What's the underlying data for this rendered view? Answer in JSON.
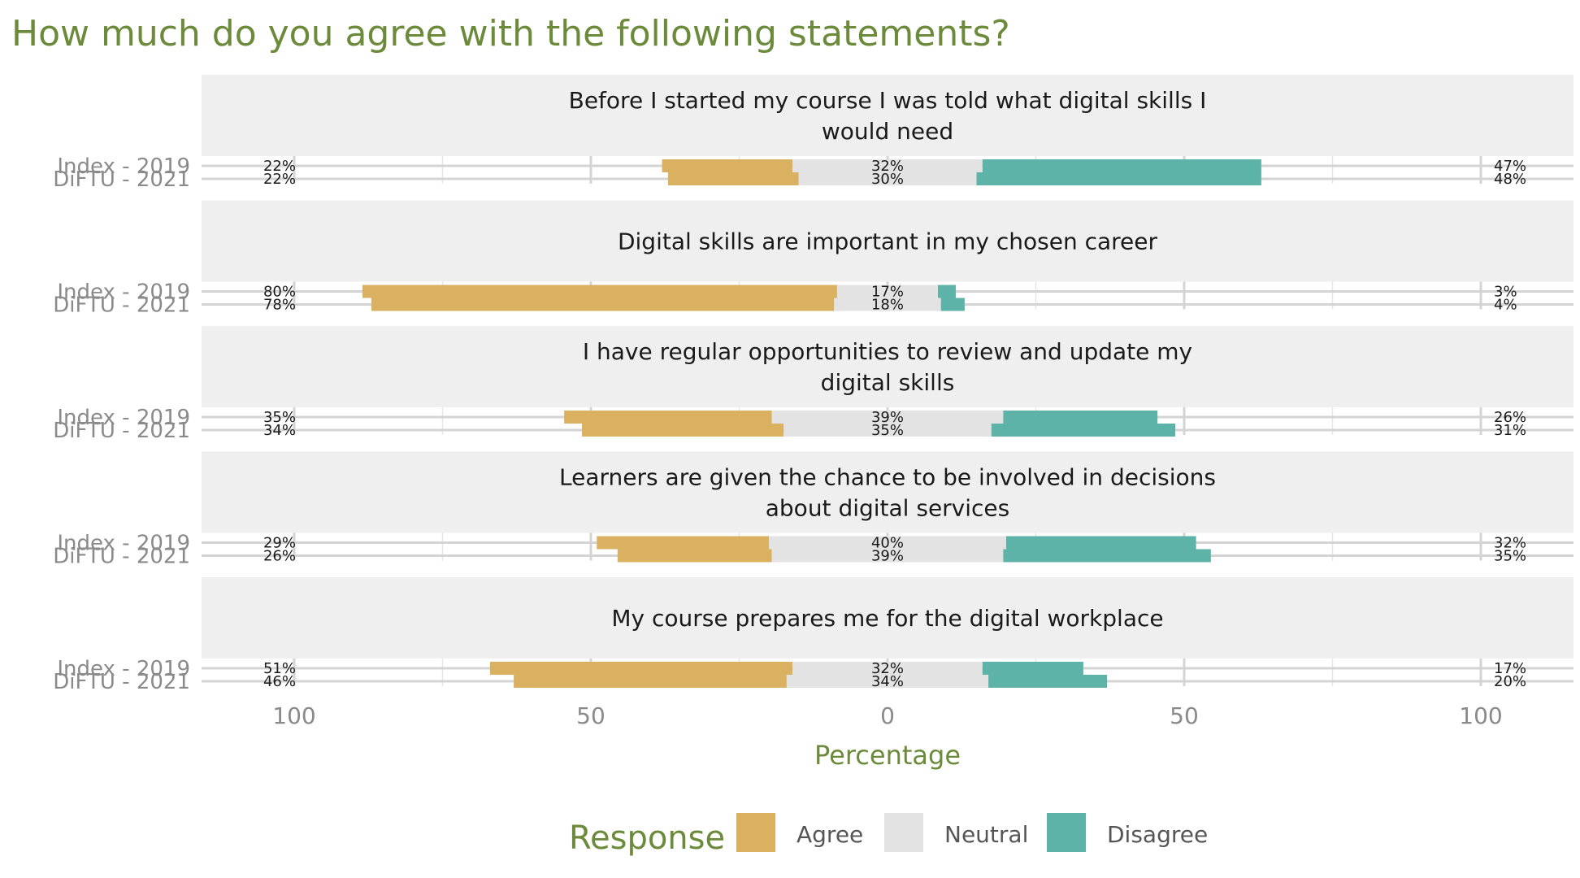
{
  "chart_data": {
    "type": "bar",
    "subtype": "diverging-stacked-horizontal",
    "title": "How much do you agree with the following statements?",
    "xlabel": "Percentage",
    "x_ticks": [
      "100",
      "50",
      "0",
      "50",
      "100"
    ],
    "xlim": [
      -100,
      100
    ],
    "grid": true,
    "legend": {
      "title": "Response",
      "position": "bottom",
      "entries": [
        {
          "name": "Agree",
          "color": "#d9b160"
        },
        {
          "name": "Neutral",
          "color": "#e3e3e3"
        },
        {
          "name": "Disagree",
          "color": "#5db3a8"
        }
      ]
    },
    "row_names": [
      "Index - 2019",
      "DiFTU - 2021"
    ],
    "panels": [
      {
        "statement": "Before I started my course I was told what digital skills I would need",
        "statement_lines": [
          "Before I started my course I was told what digital skills I",
          "would need"
        ],
        "rows": [
          {
            "group": "Index - 2019",
            "agree": 22,
            "neutral": 32,
            "disagree": 47,
            "agree_label": "22%",
            "neutral_label": "32%",
            "disagree_label": "47%"
          },
          {
            "group": "DiFTU - 2021",
            "agree": 22,
            "neutral": 30,
            "disagree": 48,
            "agree_label": "22%",
            "neutral_label": "30%",
            "disagree_label": "48%"
          }
        ]
      },
      {
        "statement": "Digital skills are important in my chosen career",
        "statement_lines": [
          "Digital skills are important in my chosen career"
        ],
        "rows": [
          {
            "group": "Index - 2019",
            "agree": 80,
            "neutral": 17,
            "disagree": 3,
            "agree_label": "80%",
            "neutral_label": "17%",
            "disagree_label": "3%"
          },
          {
            "group": "DiFTU - 2021",
            "agree": 78,
            "neutral": 18,
            "disagree": 4,
            "agree_label": "78%",
            "neutral_label": "18%",
            "disagree_label": "4%"
          }
        ]
      },
      {
        "statement": "I have regular opportunities to review and update my digital skills",
        "statement_lines": [
          "I have regular opportunities to review and update my",
          "digital skills"
        ],
        "rows": [
          {
            "group": "Index - 2019",
            "agree": 35,
            "neutral": 39,
            "disagree": 26,
            "agree_label": "35%",
            "neutral_label": "39%",
            "disagree_label": "26%"
          },
          {
            "group": "DiFTU - 2021",
            "agree": 34,
            "neutral": 35,
            "disagree": 31,
            "agree_label": "34%",
            "neutral_label": "35%",
            "disagree_label": "31%"
          }
        ]
      },
      {
        "statement": "Learners are given the chance to be involved in decisions about digital services",
        "statement_lines": [
          "Learners are given the chance to be involved in decisions",
          "about digital services"
        ],
        "rows": [
          {
            "group": "Index - 2019",
            "agree": 29,
            "neutral": 40,
            "disagree": 32,
            "agree_label": "29%",
            "neutral_label": "40%",
            "disagree_label": "32%"
          },
          {
            "group": "DiFTU - 2021",
            "agree": 26,
            "neutral": 39,
            "disagree": 35,
            "agree_label": "26%",
            "neutral_label": "39%",
            "disagree_label": "35%"
          }
        ]
      },
      {
        "statement": "My course prepares me for the digital workplace",
        "statement_lines": [
          "My course prepares me for the digital workplace"
        ],
        "rows": [
          {
            "group": "Index - 2019",
            "agree": 51,
            "neutral": 32,
            "disagree": 17,
            "agree_label": "51%",
            "neutral_label": "32%",
            "disagree_label": "17%"
          },
          {
            "group": "DiFTU - 2021",
            "agree": 46,
            "neutral": 34,
            "disagree": 20,
            "agree_label": "46%",
            "neutral_label": "34%",
            "disagree_label": "20%"
          }
        ]
      }
    ]
  }
}
